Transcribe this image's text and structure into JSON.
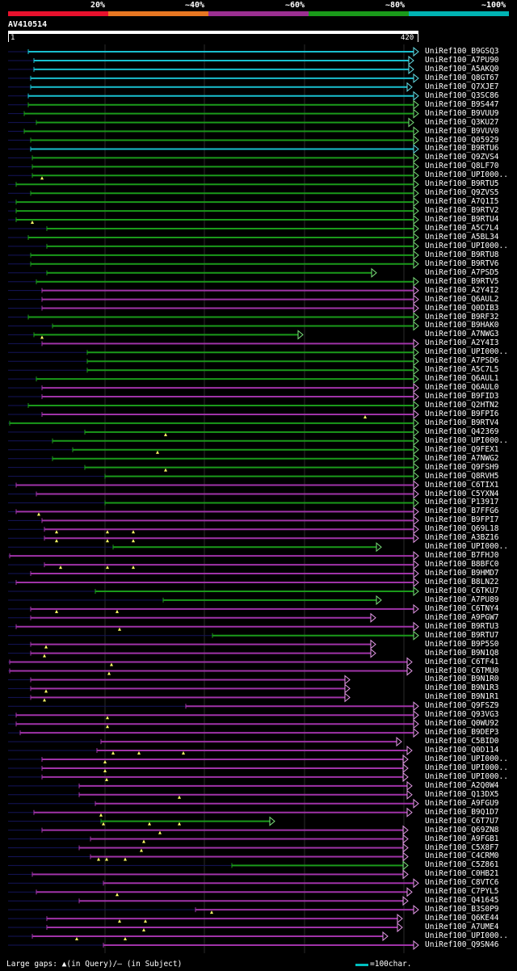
{
  "legend": {
    "colors": [
      "#e8112d",
      "#e87722",
      "#9b2f91",
      "#1a9a1a",
      "#00b3b3"
    ],
    "ticks": [
      "20%",
      "~40%",
      "~60%",
      "~80%",
      "~100%"
    ]
  },
  "query": {
    "id": "AV410514",
    "start": "1",
    "end": "420"
  },
  "hits": [
    {
      "label": "UniRef100_B9GSQ3",
      "color": "cyan",
      "x1": 35,
      "x2": 518
    },
    {
      "label": "UniRef100_A7PU90",
      "color": "cyan",
      "x1": 42,
      "x2": 512
    },
    {
      "label": "UniRef100_A5AKQ0",
      "color": "cyan",
      "x1": 42,
      "x2": 512
    },
    {
      "label": "UniRef100_Q8GT67",
      "color": "cyan",
      "x1": 38,
      "x2": 518
    },
    {
      "label": "UniRef100_Q7XJE7",
      "color": "cyan",
      "x1": 38,
      "x2": 510
    },
    {
      "label": "UniRef100_Q3SC86",
      "color": "cyan",
      "x1": 35,
      "x2": 518
    },
    {
      "label": "UniRef100_B9S447",
      "color": "green",
      "x1": 35,
      "x2": 518
    },
    {
      "label": "UniRef100_B9VUU9",
      "color": "green",
      "x1": 30,
      "x2": 518
    },
    {
      "label": "UniRef100_Q3KU27",
      "color": "green",
      "x1": 45,
      "x2": 512
    },
    {
      "label": "UniRef100_B9VUV0",
      "color": "green",
      "x1": 30,
      "x2": 518
    },
    {
      "label": "UniRef100_Q05929",
      "color": "green",
      "x1": 38,
      "x2": 518
    },
    {
      "label": "UniRef100_B9RTU6",
      "color": "cyan",
      "x1": 38,
      "x2": 518
    },
    {
      "label": "UniRef100_Q9ZVS4",
      "color": "green",
      "x1": 40,
      "x2": 518
    },
    {
      "label": "UniRef100_Q8LF70",
      "color": "green",
      "x1": 40,
      "x2": 518
    },
    {
      "label": "UniRef100_UPI000..",
      "color": "green",
      "x1": 40,
      "x2": 518,
      "gap": 52
    },
    {
      "label": "UniRef100_B9RTU5",
      "color": "green",
      "x1": 20,
      "x2": 518
    },
    {
      "label": "UniRef100_Q9ZVS5",
      "color": "green",
      "x1": 38,
      "x2": 518
    },
    {
      "label": "UniRef100_A7Q1I5",
      "color": "green",
      "x1": 20,
      "x2": 518
    },
    {
      "label": "UniRef100_B9RTV2",
      "color": "green",
      "x1": 20,
      "x2": 518
    },
    {
      "label": "UniRef100_B9RTU4",
      "color": "green",
      "x1": 20,
      "x2": 518,
      "gap": 40
    },
    {
      "label": "UniRef100_A5C7L4",
      "color": "green",
      "x1": 58,
      "x2": 518
    },
    {
      "label": "UniRef100_A5BL34",
      "color": "green",
      "x1": 35,
      "x2": 518
    },
    {
      "label": "UniRef100_UPI000..",
      "color": "green",
      "x1": 58,
      "x2": 518
    },
    {
      "label": "UniRef100_B9RTU8",
      "color": "green",
      "x1": 38,
      "x2": 518
    },
    {
      "label": "UniRef100_B9RTV6",
      "color": "green",
      "x1": 38,
      "x2": 518
    },
    {
      "label": "UniRef100_A7PSD5",
      "color": "green",
      "x1": 58,
      "x2": 466
    },
    {
      "label": "UniRef100_B9RTV5",
      "color": "green",
      "x1": 45,
      "x2": 518
    },
    {
      "label": "UniRef100_A2Y4I2",
      "color": "purple",
      "x1": 52,
      "x2": 518
    },
    {
      "label": "UniRef100_Q6AUL2",
      "color": "purple",
      "x1": 52,
      "x2": 518
    },
    {
      "label": "UniRef100_Q0DIB3",
      "color": "purple",
      "x1": 52,
      "x2": 518
    },
    {
      "label": "UniRef100_B9RF32",
      "color": "green",
      "x1": 35,
      "x2": 518
    },
    {
      "label": "UniRef100_B9HAK0",
      "color": "green",
      "x1": 65,
      "x2": 518
    },
    {
      "label": "UniRef100_A7NWG3",
      "color": "green",
      "x1": 42,
      "x2": 375,
      "gap": 52
    },
    {
      "label": "UniRef100_A2Y4I3",
      "color": "purple",
      "x1": 52,
      "x2": 518
    },
    {
      "label": "UniRef100_UPI000..",
      "color": "green",
      "x1": 108,
      "x2": 518
    },
    {
      "label": "UniRef100_A7PSD6",
      "color": "green",
      "x1": 108,
      "x2": 518
    },
    {
      "label": "UniRef100_A5C7L5",
      "color": "green",
      "x1": 108,
      "x2": 518
    },
    {
      "label": "UniRef100_Q6AUL1",
      "color": "green",
      "x1": 45,
      "x2": 518
    },
    {
      "label": "UniRef100_Q6AUL0",
      "color": "purple",
      "x1": 52,
      "x2": 518
    },
    {
      "label": "UniRef100_B9FID3",
      "color": "purple",
      "x1": 52,
      "x2": 518
    },
    {
      "label": "UniRef100_Q2HTN2",
      "color": "green",
      "x1": 35,
      "x2": 518
    },
    {
      "label": "UniRef100_B9FPI6",
      "color": "purple",
      "x1": 52,
      "x2": 518,
      "gap": 452,
      "mid": 450
    },
    {
      "label": "UniRef100_B9RTV4",
      "color": "green",
      "x1": 12,
      "x2": 518
    },
    {
      "label": "UniRef100_Q42369",
      "color": "green",
      "x1": 105,
      "x2": 518,
      "gap": 205
    },
    {
      "label": "UniRef100_UPI000..",
      "color": "green",
      "x1": 65,
      "x2": 518
    },
    {
      "label": "UniRef100_Q9FEX1",
      "color": "green",
      "x1": 90,
      "x2": 518,
      "gap": 195
    },
    {
      "label": "UniRef100_A7NWG2",
      "color": "green",
      "x1": 65,
      "x2": 518
    },
    {
      "label": "UniRef100_Q9FSH9",
      "color": "green",
      "x1": 105,
      "x2": 518,
      "gap": 205
    },
    {
      "label": "UniRef100_Q8RVH5",
      "color": "green",
      "x1": 130,
      "x2": 518
    },
    {
      "label": "UniRef100_C6TIX1",
      "color": "purple",
      "x1": 20,
      "x2": 518
    },
    {
      "label": "UniRef100_C5YXN4",
      "color": "purple",
      "x1": 45,
      "x2": 518
    },
    {
      "label": "UniRef100_P13917",
      "color": "green",
      "x1": 130,
      "x2": 518
    },
    {
      "label": "UniRef100_B7FFG6",
      "color": "purple",
      "x1": 20,
      "x2": 518,
      "gap": 48
    },
    {
      "label": "UniRef100_B9FPI7",
      "color": "purple",
      "x1": 52,
      "x2": 518
    },
    {
      "label": "UniRef100_Q69L18",
      "color": "purple",
      "x1": 55,
      "x2": 518,
      "gaps": [
        70,
        133,
        165
      ]
    },
    {
      "label": "UniRef100_A3BZ16",
      "color": "purple",
      "x1": 55,
      "x2": 518,
      "gaps": [
        70,
        133,
        165
      ]
    },
    {
      "label": "UniRef100_UPI000..",
      "color": "green",
      "x1": 140,
      "x2": 472
    },
    {
      "label": "UniRef100_B7FHJ0",
      "color": "purple",
      "x1": 12,
      "x2": 518
    },
    {
      "label": "UniRef100_B8BFC0",
      "color": "purple",
      "x1": 55,
      "x2": 518,
      "gaps": [
        75,
        133,
        165
      ]
    },
    {
      "label": "UniRef100_B9HMD7",
      "color": "purple",
      "x1": 38,
      "x2": 518
    },
    {
      "label": "UniRef100_B8LN22",
      "color": "purple",
      "x1": 20,
      "x2": 518
    },
    {
      "label": "UniRef100_C6TKU7",
      "color": "green",
      "x1": 118,
      "x2": 518
    },
    {
      "label": "UniRef100_A7PU89",
      "color": "green",
      "x1": 202,
      "x2": 472
    },
    {
      "label": "UniRef100_C6TNY4",
      "color": "purple",
      "x1": 38,
      "x2": 518,
      "gaps": [
        70,
        145
      ]
    },
    {
      "label": "UniRef100_A9PGW7",
      "color": "purple",
      "x1": 38,
      "x2": 465
    },
    {
      "label": "UniRef100_B9RTU3",
      "color": "purple",
      "x1": 20,
      "x2": 518,
      "gap": 148
    },
    {
      "label": "UniRef100_B9RTU7",
      "color": "green",
      "x1": 263,
      "x2": 518
    },
    {
      "label": "UniRef100_B9P5S0",
      "color": "purple",
      "x1": 38,
      "x2": 465,
      "gap": 57
    },
    {
      "label": "UniRef100_B9N1Q8",
      "color": "purple",
      "x1": 38,
      "x2": 465,
      "gap": 55
    },
    {
      "label": "UniRef100_C6TF41",
      "color": "purple",
      "x1": 12,
      "x2": 510,
      "gap": 138
    },
    {
      "label": "UniRef100_C6TMU0",
      "color": "purple",
      "x1": 12,
      "x2": 510,
      "gap": 135
    },
    {
      "label": "UniRef100_B9N1R0",
      "color": "purple",
      "x1": 38,
      "x2": 433
    },
    {
      "label": "UniRef100_B9N1R3",
      "color": "purple",
      "x1": 38,
      "x2": 433,
      "gap": 57
    },
    {
      "label": "UniRef100_B9N1R1",
      "color": "purple",
      "x1": 38,
      "x2": 433,
      "gap": 55
    },
    {
      "label": "UniRef100_Q9FSZ9",
      "color": "purple",
      "x1": 230,
      "x2": 518
    },
    {
      "label": "UniRef100_Q93VG3",
      "color": "purple",
      "x1": 20,
      "x2": 518,
      "gap": 133
    },
    {
      "label": "UniRef100_Q0WU92",
      "color": "purple",
      "x1": 20,
      "x2": 518,
      "gap": 133
    },
    {
      "label": "UniRef100_B9DEP3",
      "color": "purple",
      "x1": 25,
      "x2": 518
    },
    {
      "label": "UniRef100_C5BID0",
      "color": "purple",
      "x1": 125,
      "x2": 497
    },
    {
      "label": "UniRef100_Q0D114",
      "color": "purple",
      "x1": 120,
      "x2": 510,
      "gaps": [
        140,
        172,
        227
      ]
    },
    {
      "label": "UniRef100_UPI000..",
      "color": "purple",
      "x1": 52,
      "x2": 505,
      "gap": 130
    },
    {
      "label": "UniRef100_UPI000..",
      "color": "purple",
      "x1": 52,
      "x2": 505,
      "gap": 130
    },
    {
      "label": "UniRef100_UPI000..",
      "color": "purple",
      "x1": 52,
      "x2": 505,
      "gap": 132
    },
    {
      "label": "UniRef100_A2Q0W4",
      "color": "purple",
      "x1": 98,
      "x2": 510
    },
    {
      "label": "UniRef100_Q13DX5",
      "color": "purple",
      "x1": 98,
      "x2": 510,
      "gap": 222
    },
    {
      "label": "UniRef100_A9FGU9",
      "color": "purple",
      "x1": 118,
      "x2": 518
    },
    {
      "label": "UniRef100_B9Q1D7",
      "color": "purple",
      "x1": 42,
      "x2": 510,
      "gap": 125
    },
    {
      "label": "UniRef100_C6T7U7",
      "color": "green",
      "x1": 125,
      "x2": 340,
      "gaps": [
        128,
        185,
        222
      ]
    },
    {
      "label": "UniRef100_Q69ZN8",
      "color": "purple",
      "x1": 52,
      "x2": 505,
      "gap": 198
    },
    {
      "label": "UniRef100_A9FGB1",
      "color": "purple",
      "x1": 112,
      "x2": 505,
      "gap": 178
    },
    {
      "label": "UniRef100_C5X8F7",
      "color": "purple",
      "x1": 98,
      "x2": 505,
      "gap": 175
    },
    {
      "label": "UniRef100_C4CRM0",
      "color": "purple",
      "x1": 112,
      "x2": 505,
      "gaps": [
        122,
        132,
        155
      ]
    },
    {
      "label": "UniRef100_C5Z861",
      "color": "green",
      "x1": 287,
      "x2": 505
    },
    {
      "label": "UniRef100_C0HB21",
      "color": "purple",
      "x1": 40,
      "x2": 505
    },
    {
      "label": "UniRef100_C8VTC6",
      "color": "purple",
      "x1": 128,
      "x2": 518
    },
    {
      "label": "UniRef100_C7PYL5",
      "color": "purple",
      "x1": 45,
      "x2": 510,
      "gap": 145
    },
    {
      "label": "UniRef100_Q41645",
      "color": "purple",
      "x1": 98,
      "x2": 505
    },
    {
      "label": "UniRef100_B3S0P9",
      "color": "purple",
      "x1": 242,
      "x2": 518,
      "gap": 262
    },
    {
      "label": "UniRef100_Q6KE44",
      "color": "purple",
      "x1": 58,
      "x2": 498,
      "gaps": [
        148,
        180
      ]
    },
    {
      "label": "UniRef100_A7UME4",
      "color": "purple",
      "x1": 58,
      "x2": 498,
      "gap": 178
    },
    {
      "label": "UniRef100_UPI000..",
      "color": "purple",
      "x1": 40,
      "x2": 480,
      "gaps": [
        95,
        155
      ]
    },
    {
      "label": "UniRef100_Q9SN46",
      "color": "purple",
      "x1": 128,
      "x2": 518
    }
  ],
  "footer": {
    "text": "Large gaps: ▲(in Query)/— (in Subject)",
    "scale": "=100char."
  }
}
